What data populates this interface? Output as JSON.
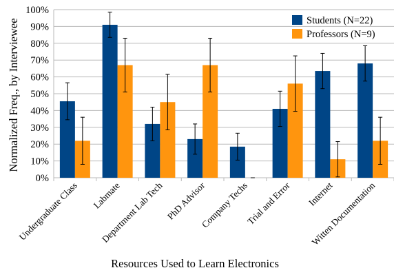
{
  "chart_data": {
    "type": "bar",
    "categories": [
      "Undergraduate Class",
      "Labmate",
      "Department Lab Tech",
      "PhD Advisor",
      "Company Techs",
      "Trial and Error",
      "Internet",
      "Witten Documentation"
    ],
    "series": [
      {
        "name": "Students (N=22)",
        "color": "#004586",
        "values": [
          45.5,
          91,
          32,
          23,
          18.5,
          41,
          63.5,
          68
        ],
        "error": [
          11,
          7.5,
          10,
          9,
          8,
          10.5,
          10.5,
          10.5
        ]
      },
      {
        "name": "Professors (N=9)",
        "color": "#ff950e",
        "values": [
          22,
          67,
          45,
          67,
          0,
          56,
          11,
          22
        ],
        "error": [
          14,
          16,
          16.5,
          16,
          0,
          16.5,
          10.5,
          14
        ]
      }
    ],
    "ylim": [
      0,
      100
    ],
    "yticks": [
      "0%",
      "10%",
      "20%",
      "30%",
      "40%",
      "50%",
      "60%",
      "70%",
      "80%",
      "90%",
      "100%"
    ],
    "ylabel": "Normalized Freq., by Interviewee",
    "xlabel": "Resources Used to Learn Electronics",
    "grid": true,
    "legend_position": "top-right"
  }
}
